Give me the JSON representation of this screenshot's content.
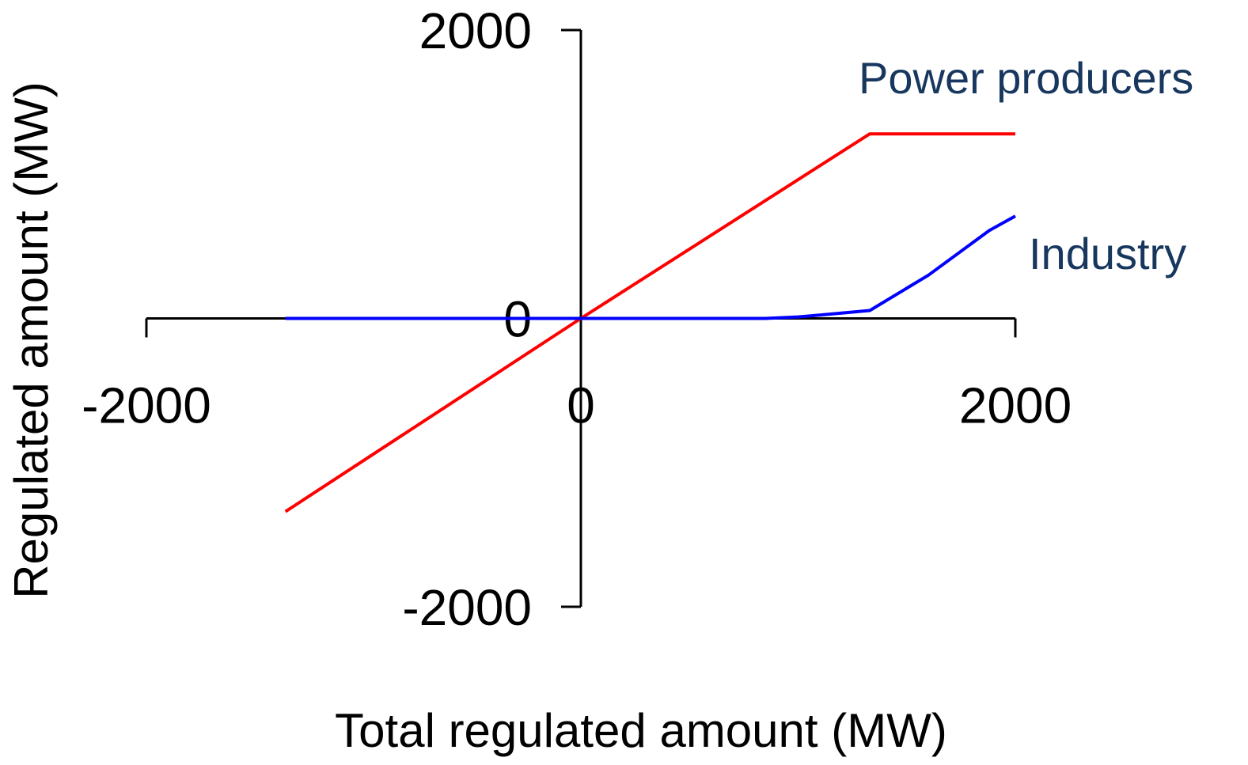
{
  "chart_data": {
    "type": "line",
    "x_label": "Total regulated amount (MW)",
    "y_label": "Regulated amount (MW)",
    "xlim": [
      -2000,
      2000
    ],
    "xticks": [
      -2000,
      0,
      2000
    ],
    "ylim": [
      -2000,
      2000
    ],
    "yticks": [
      -2000,
      0,
      2000
    ],
    "series": [
      {
        "name": "Power producers",
        "color": "#ff0000",
        "label_color": "#17375e",
        "x": [
          -1360,
          0,
          1330,
          2000
        ],
        "values": [
          -1340,
          0,
          1280,
          1280
        ]
      },
      {
        "name": "Industry",
        "color": "#0000ff",
        "label_color": "#17375e",
        "x": [
          -1360,
          850,
          1000,
          1150,
          1330,
          1600,
          1880,
          2000
        ],
        "values": [
          0,
          0,
          10,
          30,
          55,
          300,
          610,
          710
        ]
      }
    ]
  }
}
